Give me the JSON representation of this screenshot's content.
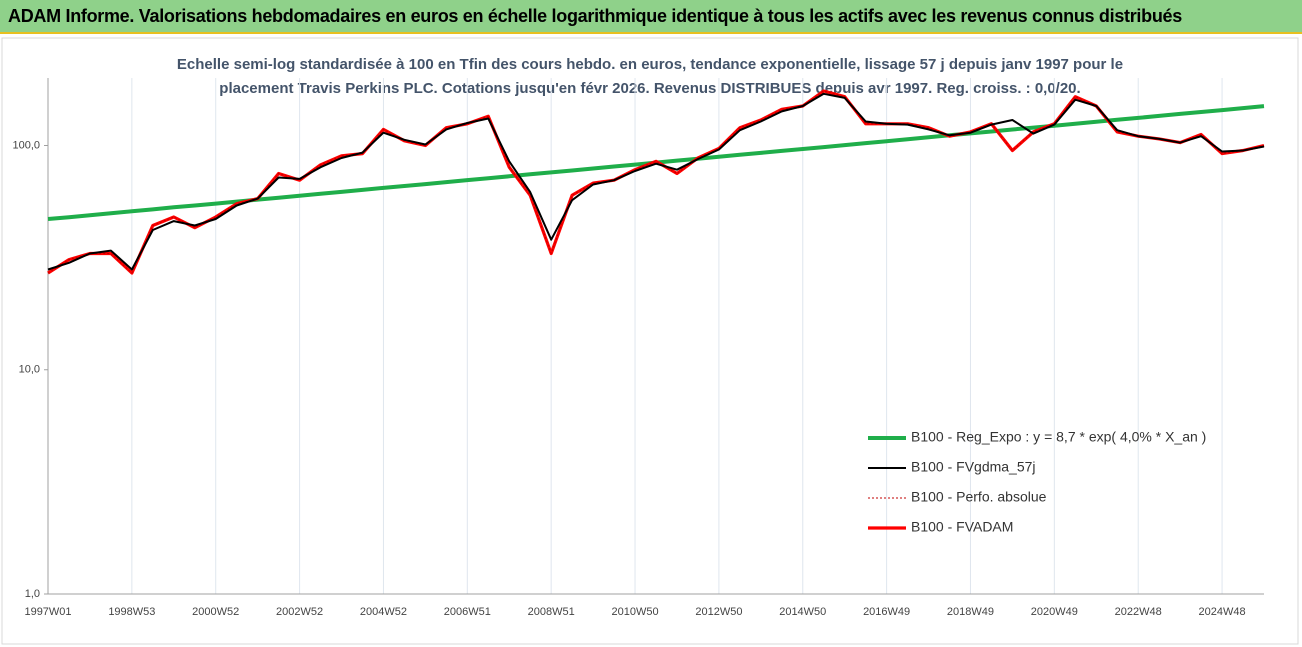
{
  "header": {
    "title": "ADAM Informe. Valorisations hebdomadaires en euros en échelle logarithmique identique à tous les actifs avec les revenus connus distribués"
  },
  "chart_data": {
    "type": "line",
    "title": [
      "Echelle semi-log standardisée à 100 en Tfin des cours hebdo. en euros, tendance exponentielle, lissage 57 j depuis janv 1997 pour le",
      "placement Travis Perkins PLC. Cotations jusqu'en févr 2026. Revenus DISTRIBUES depuis avr 1997. Reg. croiss. : 0,0/20."
    ],
    "categories": [
      "1997W01",
      null,
      null,
      null,
      "1998W53",
      null,
      null,
      null,
      "2000W52",
      null,
      null,
      null,
      "2002W52",
      null,
      null,
      null,
      "2004W52",
      null,
      null,
      null,
      "2006W51",
      null,
      null,
      null,
      "2008W51",
      null,
      null,
      null,
      "2010W50",
      null,
      null,
      null,
      "2012W50",
      null,
      null,
      null,
      "2014W50",
      null,
      null,
      null,
      "2016W49",
      null,
      null,
      null,
      "2018W49",
      null,
      null,
      null,
      "2020W49",
      null,
      null,
      null,
      "2022W48",
      null,
      null,
      null,
      "2024W48",
      null,
      null
    ],
    "series": [
      {
        "name": "B100 - Reg_Expo : y = 8,7 * exp( 4,0% *  X_an )",
        "color": "#1fae4a",
        "line_style": "solid",
        "values": [
          47.0,
          47.9,
          48.9,
          49.9,
          50.9,
          51.9,
          53.0,
          54.0,
          55.1,
          56.2,
          57.4,
          58.5,
          59.7,
          60.9,
          62.1,
          63.4,
          64.7,
          66.0,
          67.3,
          68.7,
          70.1,
          71.5,
          72.9,
          74.4,
          75.9,
          77.4,
          79.0,
          80.6,
          82.2,
          83.9,
          85.6,
          87.3,
          89.1,
          90.9,
          92.7,
          94.6,
          96.5,
          98.4,
          100.4,
          102.5,
          104.5,
          106.7,
          108.8,
          111.0,
          113.2,
          115.5,
          117.9,
          120.2,
          122.6,
          125.1,
          127.6,
          130.2,
          132.8,
          135.5,
          138.3,
          141.0,
          143.9,
          146.8,
          149.8
        ]
      },
      {
        "name": "B100 - FVgdma_57j",
        "color": "#000000",
        "line_style": "solid",
        "values": [
          28,
          30,
          33,
          34,
          28,
          42,
          46,
          44,
          47,
          54,
          58,
          72,
          71,
          80,
          88,
          93,
          114,
          106,
          101,
          118,
          126,
          132,
          85,
          62,
          38,
          57,
          67,
          70,
          77,
          83,
          78,
          87,
          96,
          117,
          128,
          142,
          150,
          170,
          163,
          128,
          125,
          124,
          118,
          111,
          114,
          124,
          130,
          113,
          124,
          160,
          150,
          117,
          110,
          107,
          103,
          110,
          94,
          95,
          99
        ]
      },
      {
        "name": "B100 - Perfo. absolue",
        "color": "#c00000",
        "line_style": "dotted",
        "values": [
          27,
          31,
          33,
          33,
          27,
          44,
          48,
          43,
          48,
          55,
          58,
          75,
          70,
          82,
          90,
          92,
          118,
          105,
          100,
          120,
          125,
          135,
          80,
          60,
          33,
          60,
          68,
          70,
          78,
          85,
          75,
          88,
          97,
          120,
          130,
          145,
          150,
          175,
          165,
          125,
          125,
          125,
          120,
          110,
          115,
          125,
          95,
          115,
          125,
          165,
          150,
          115,
          110,
          107,
          103,
          112,
          92,
          95,
          100
        ]
      },
      {
        "name": "B100 - FVADAM",
        "color": "#ff0000",
        "line_style": "solid",
        "values": [
          27,
          31,
          33,
          33,
          27,
          44,
          48,
          43,
          48,
          55,
          58,
          75,
          70,
          82,
          90,
          92,
          118,
          105,
          100,
          120,
          125,
          135,
          80,
          60,
          33,
          60,
          68,
          70,
          78,
          85,
          75,
          88,
          97,
          120,
          130,
          145,
          150,
          175,
          165,
          125,
          125,
          125,
          120,
          110,
          115,
          125,
          95,
          115,
          125,
          165,
          150,
          115,
          110,
          107,
          103,
          112,
          92,
          95,
          100
        ]
      }
    ],
    "log_scale": true,
    "ylim": [
      1,
      200
    ],
    "yticks": [
      {
        "value": 1,
        "label": "1,0"
      },
      {
        "value": 10,
        "label": "10,0"
      },
      {
        "value": 100,
        "label": "100,0"
      }
    ],
    "grid": true,
    "legend": "lower-right"
  }
}
